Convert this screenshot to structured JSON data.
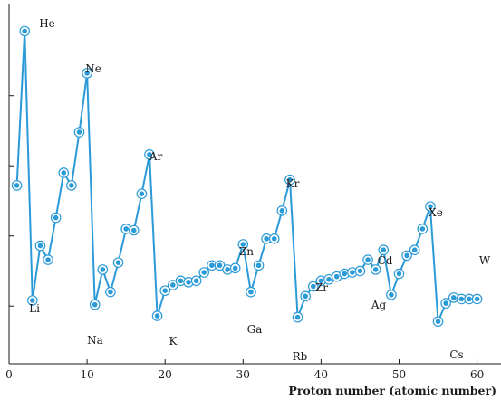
{
  "chart_data": {
    "type": "line",
    "title": "",
    "xlabel": "Proton number (atomic number)",
    "ylabel": "",
    "xlim": [
      0,
      62
    ],
    "ylim": [
      3,
      25.5
    ],
    "x_ticks": [
      0,
      10,
      20,
      30,
      40,
      50,
      60
    ],
    "y_ticks": [
      5,
      10,
      15,
      20
    ],
    "y_tick_labels_visible": false,
    "grid": false,
    "legend": "none",
    "colors": {
      "line": "#2b9ad8",
      "marker": "#2b9ad8",
      "axis": "#1a1a1a",
      "text": "#1a1a1a"
    },
    "series": [
      {
        "x": [
          1,
          2,
          3,
          4,
          5,
          6,
          7,
          8,
          9,
          10,
          11,
          12,
          13,
          14,
          15,
          16,
          17,
          18,
          19,
          20,
          21,
          22,
          23,
          24,
          25,
          26,
          27,
          28,
          29,
          30,
          31,
          32,
          33,
          34,
          35,
          36,
          37,
          38,
          39,
          40,
          41,
          42,
          43,
          44,
          45,
          46,
          47,
          48,
          49,
          50,
          51,
          52,
          53,
          54,
          55,
          56,
          57,
          58,
          59,
          60
        ],
        "y": [
          13.6,
          24.6,
          5.4,
          9.3,
          8.3,
          11.3,
          14.5,
          13.6,
          17.4,
          21.6,
          5.1,
          7.6,
          6.0,
          8.1,
          10.5,
          10.4,
          13.0,
          15.8,
          4.3,
          6.1,
          6.5,
          6.8,
          6.7,
          6.8,
          7.4,
          7.9,
          7.9,
          7.6,
          7.7,
          9.4,
          6.0,
          7.9,
          9.8,
          9.8,
          11.8,
          14.0,
          4.2,
          5.7,
          6.4,
          6.8,
          6.9,
          7.1,
          7.3,
          7.4,
          7.5,
          8.3,
          7.6,
          9.0,
          5.8,
          7.3,
          8.6,
          9.0,
          10.5,
          12.1,
          3.9,
          5.2,
          5.6,
          5.5,
          5.5,
          5.5
        ]
      }
    ],
    "annotations": [
      {
        "text": "He",
        "x": 2
      },
      {
        "text": "Li",
        "x": 3
      },
      {
        "text": "Ne",
        "x": 10
      },
      {
        "text": "Na",
        "x": 11
      },
      {
        "text": "Ar",
        "x": 18
      },
      {
        "text": "K",
        "x": 19
      },
      {
        "text": "Zn",
        "x": 30
      },
      {
        "text": "Ga",
        "x": 31
      },
      {
        "text": "Kr",
        "x": 36
      },
      {
        "text": "Rb",
        "x": 37
      },
      {
        "text": "Zr",
        "x": 40
      },
      {
        "text": "Cd",
        "x": 48
      },
      {
        "text": "Ag",
        "x": 47
      },
      {
        "text": "Xe",
        "x": 54
      },
      {
        "text": "Cs",
        "x": 55
      },
      {
        "text": "W",
        "x": 74
      }
    ]
  }
}
